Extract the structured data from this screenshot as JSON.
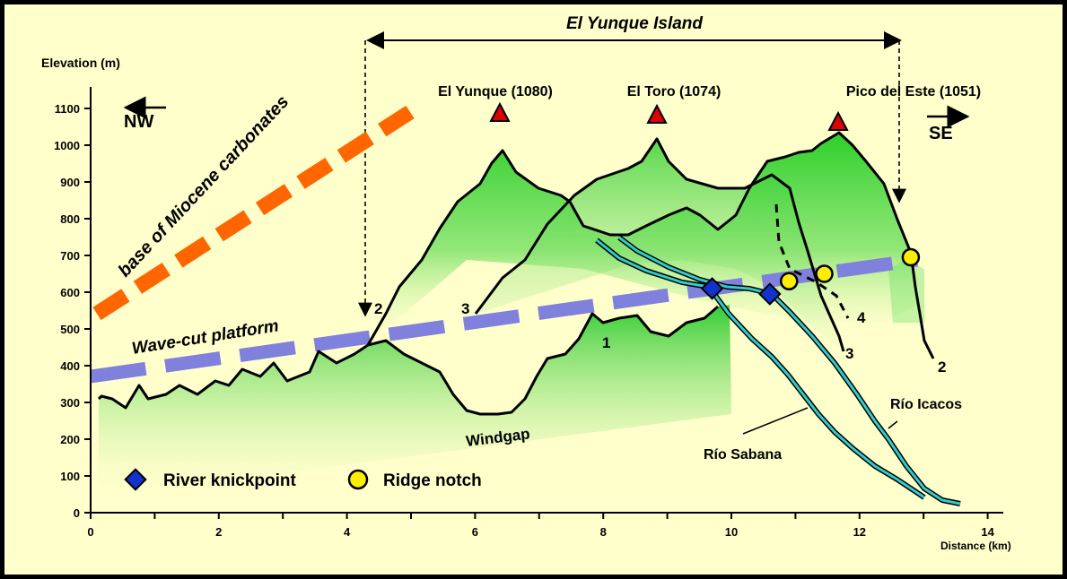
{
  "title": "El Yunque Island",
  "y_axis": {
    "label": "Elevation (m)",
    "min": 0,
    "max": 1100,
    "ticks": [
      "0",
      "100",
      "200",
      "300",
      "400",
      "500",
      "600",
      "700",
      "800",
      "900",
      "1000",
      "1100"
    ]
  },
  "x_axis": {
    "label": "Distance (km)",
    "min": 0,
    "max": 14,
    "ticks": [
      "0",
      "2",
      "4",
      "6",
      "8",
      "10",
      "12",
      "14"
    ]
  },
  "directions": {
    "left": "NW",
    "right": "SE"
  },
  "peaks": [
    {
      "label": "El Yunque (1080)",
      "km": 6.4,
      "elev": 1080
    },
    {
      "label": "El Toro (1074)",
      "km": 8.9,
      "elev": 1074
    },
    {
      "label": "Pico del Este (1051)",
      "km": 11.7,
      "elev": 1051
    }
  ],
  "features": {
    "miocene": "base of Miocene carbonates",
    "platform": "Wave-cut platform",
    "windgap": "Windgap",
    "rio_sabana": "Río Sabana",
    "rio_icacos": "Río Icacos"
  },
  "profile_numbers": [
    "1",
    "2",
    "3",
    "4",
    "2",
    "3"
  ],
  "legend": {
    "knickpoint": "River knickpoint",
    "notch": "Ridge notch"
  },
  "colors": {
    "background": "#ffffcc",
    "terrain": "#22cc22",
    "platform": "#8080dd",
    "miocene": "#ff6600",
    "peak": "#dd0000",
    "knickpoint": "#1133cc",
    "notch": "#ffee00",
    "river": "#33cccc"
  },
  "chart_data": {
    "type": "line",
    "title": "El Yunque Island",
    "xlabel": "Distance (km)",
    "ylabel": "Elevation (m)",
    "xlim": [
      0,
      14
    ],
    "ylim": [
      0,
      1100
    ],
    "knickpoints": [
      {
        "x": 9.7,
        "y": 610
      },
      {
        "x": 10.6,
        "y": 595
      }
    ],
    "ridge_notches": [
      {
        "x": 10.9,
        "y": 630
      },
      {
        "x": 11.45,
        "y": 650
      },
      {
        "x": 12.8,
        "y": 695
      }
    ],
    "peaks_x": [
      6.4,
      8.9,
      11.7
    ],
    "peaks_y": [
      1080,
      1074,
      1051
    ]
  }
}
